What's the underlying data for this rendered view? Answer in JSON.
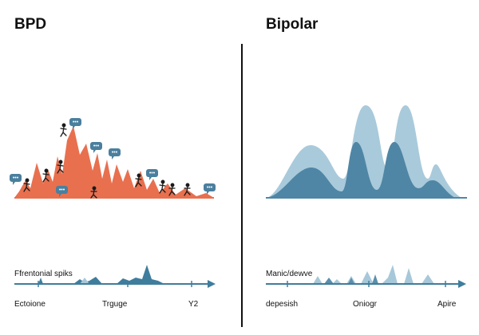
{
  "left_panel": {
    "title": "BPD",
    "timeline_label": "Ffrentonial spiks",
    "axis_labels": [
      "Ectoione",
      "Trguge",
      "Y2"
    ]
  },
  "right_panel": {
    "title": "Bipolar",
    "timeline_label": "Manic/dewve",
    "axis_labels": [
      "depesish",
      "Oniogr",
      "Apire"
    ]
  },
  "colors": {
    "spike": "#e8704f",
    "light_wave": "#a9cadb",
    "dark_wave": "#4f86a5",
    "timeline": "#3f7d9c",
    "timeline_light": "#a7c8d9",
    "bubble": "#4a7f9e",
    "divider": "#111111"
  }
}
